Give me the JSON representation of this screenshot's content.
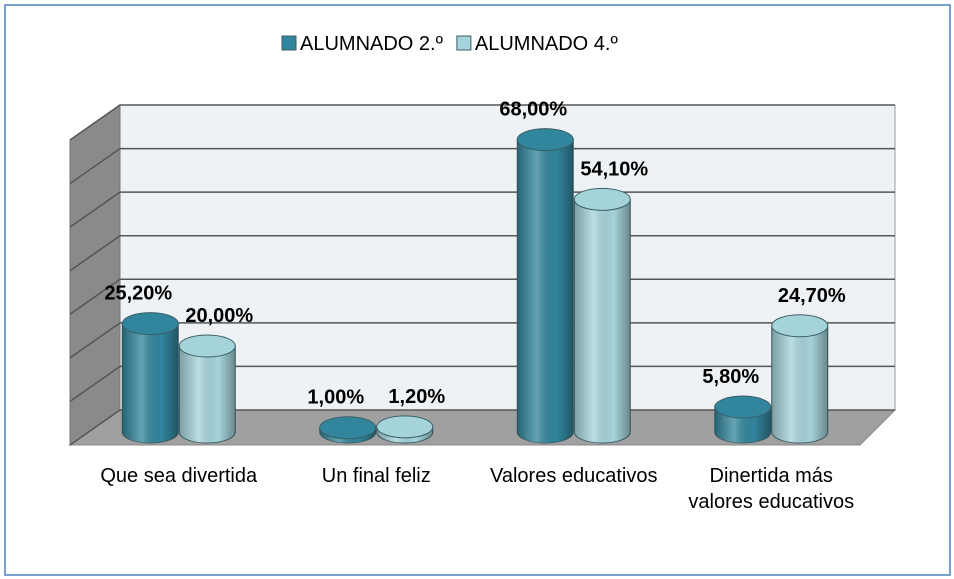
{
  "chart_data": {
    "type": "cylinder-bar",
    "categories": [
      "Que sea divertida",
      "Un final feliz",
      "Valores educativos",
      "Dinertida más valores educativos"
    ],
    "series": [
      {
        "name": "ALUMNADO 2.º",
        "color": "#31859c",
        "values": [
          25.2,
          1.0,
          68.0,
          5.8
        ],
        "value_labels": [
          "25,20%",
          "1,00%",
          "68,00%",
          "5,80%"
        ]
      },
      {
        "name": "ALUMNADO 4.º",
        "color": "#a5d3da",
        "values": [
          20.0,
          1.2,
          54.1,
          24.7
        ],
        "value_labels": [
          "20,00%",
          "1,20%",
          "54,10%",
          "24,70%"
        ]
      }
    ],
    "ylim": [
      0,
      70
    ],
    "yticks": [
      0,
      10,
      20,
      30,
      40,
      50,
      60,
      70
    ],
    "grid": true,
    "legend": "top"
  }
}
